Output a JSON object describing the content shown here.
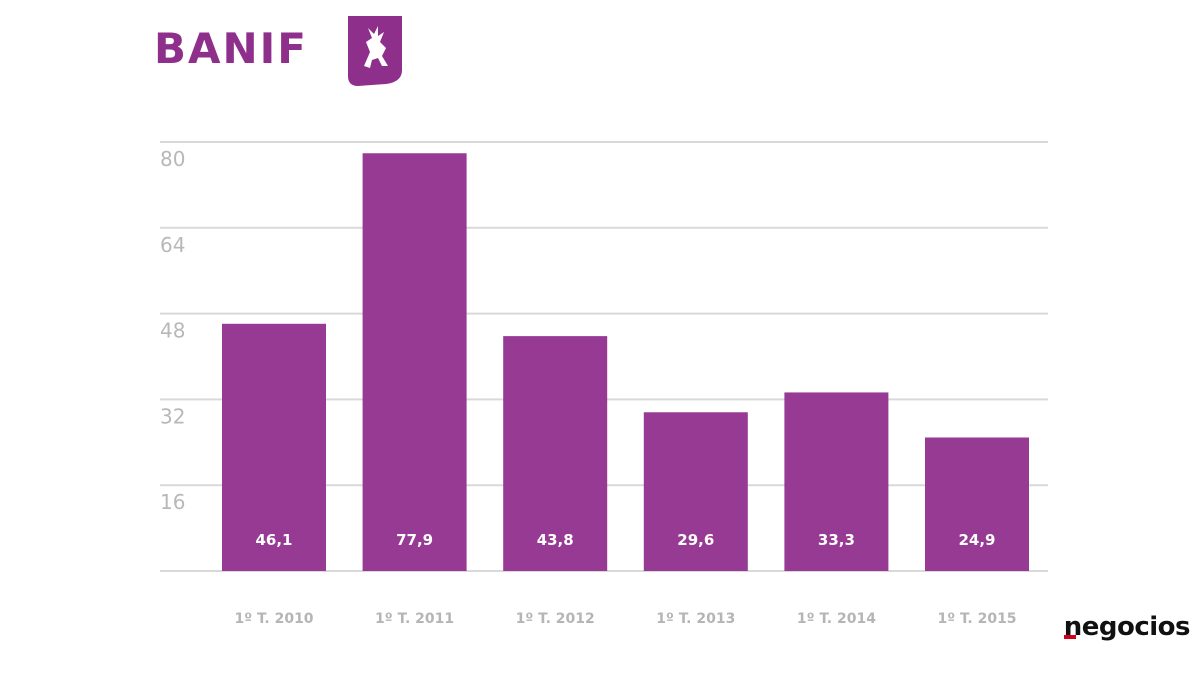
{
  "brand": {
    "name": "BANIF",
    "color": "#8e2f8c"
  },
  "source": {
    "name": "negocios",
    "accent_color": "#d0021b"
  },
  "chart_data": {
    "type": "bar",
    "categories": [
      "1º T. 2010",
      "1º T. 2011",
      "1º T. 2012",
      "1º T. 2013",
      "1º T. 2014",
      "1º T. 2015"
    ],
    "values": [
      46.1,
      77.9,
      43.8,
      29.6,
      33.3,
      24.9
    ],
    "value_labels": [
      "46,1",
      "77,9",
      "43,8",
      "29,6",
      "33,3",
      "24,9"
    ],
    "yticks": [
      16,
      32,
      48,
      64,
      80
    ],
    "ylim": [
      0,
      80
    ],
    "grid": true,
    "bar_color": "#963a93",
    "title": "",
    "xlabel": "",
    "ylabel": ""
  }
}
